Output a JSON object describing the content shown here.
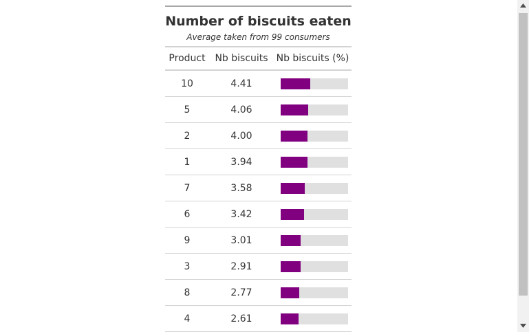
{
  "table": {
    "title": "Number of biscuits eaten",
    "subtitle": "Average taken from 99 consumers",
    "columns": [
      "Product",
      "Nb biscuits",
      "Nb biscuits (%)"
    ],
    "bar_color": "#800080",
    "bar_track_color": "#e0e0e0",
    "rows": [
      {
        "product": "10",
        "nb_biscuits": "4.41",
        "pct": 44.1
      },
      {
        "product": "5",
        "nb_biscuits": "4.06",
        "pct": 40.6
      },
      {
        "product": "2",
        "nb_biscuits": "4.00",
        "pct": 40.0
      },
      {
        "product": "1",
        "nb_biscuits": "3.94",
        "pct": 39.4
      },
      {
        "product": "7",
        "nb_biscuits": "3.58",
        "pct": 35.8
      },
      {
        "product": "6",
        "nb_biscuits": "3.42",
        "pct": 34.2
      },
      {
        "product": "9",
        "nb_biscuits": "3.01",
        "pct": 30.1
      },
      {
        "product": "3",
        "nb_biscuits": "2.91",
        "pct": 29.1
      },
      {
        "product": "8",
        "nb_biscuits": "2.77",
        "pct": 27.7
      },
      {
        "product": "4",
        "nb_biscuits": "2.61",
        "pct": 26.1
      }
    ]
  },
  "scrollbar": {
    "up_icon": "triangle-up-icon",
    "down_icon": "triangle-down-icon"
  }
}
